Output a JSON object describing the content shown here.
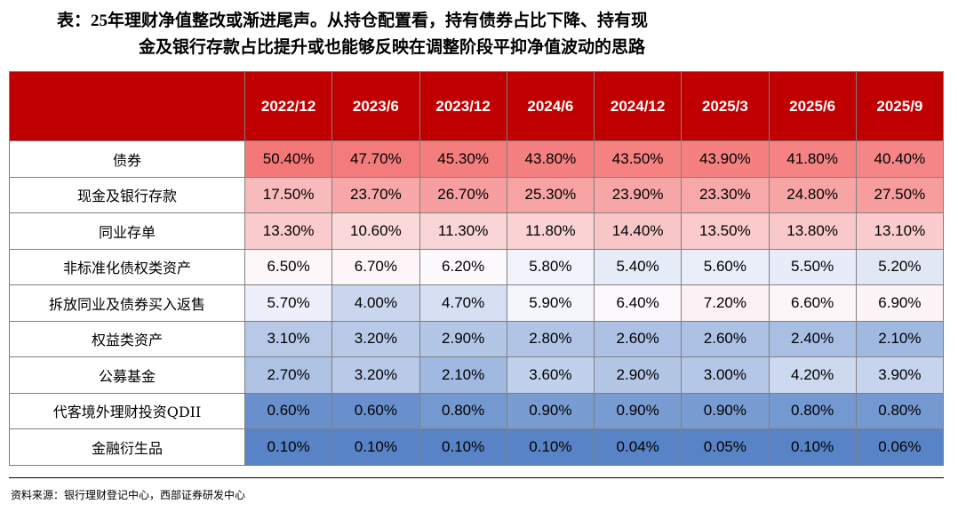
{
  "title": {
    "line1": "表：25年理财净值整改或渐进尾声。从持仓配置看，持有债券占比下降、持有现",
    "line2": "金及银行存款占比提升或也能够反映在调整阶段平抑净值波动的思路"
  },
  "table": {
    "columns": [
      "2022/12",
      "2023/6",
      "2023/12",
      "2024/6",
      "2024/12",
      "2025/3",
      "2025/6",
      "2025/9"
    ],
    "rows": [
      {
        "label": "债券",
        "values": [
          "50.40%",
          "47.70%",
          "45.30%",
          "43.80%",
          "43.50%",
          "43.90%",
          "41.80%",
          "40.40%"
        ]
      },
      {
        "label": "现金及银行存款",
        "values": [
          "17.50%",
          "23.70%",
          "26.70%",
          "25.30%",
          "23.90%",
          "23.30%",
          "24.80%",
          "27.50%"
        ]
      },
      {
        "label": "同业存单",
        "values": [
          "13.30%",
          "10.60%",
          "11.30%",
          "11.80%",
          "14.40%",
          "13.50%",
          "13.80%",
          "13.10%"
        ]
      },
      {
        "label": "非标准化债权类资产",
        "values": [
          "6.50%",
          "6.70%",
          "6.20%",
          "5.80%",
          "5.40%",
          "5.60%",
          "5.50%",
          "5.20%"
        ]
      },
      {
        "label": "拆放同业及债券买入返售",
        "values": [
          "5.70%",
          "4.00%",
          "4.70%",
          "5.90%",
          "6.40%",
          "7.20%",
          "6.60%",
          "6.90%"
        ]
      },
      {
        "label": "权益类资产",
        "values": [
          "3.10%",
          "3.20%",
          "2.90%",
          "2.80%",
          "2.60%",
          "2.60%",
          "2.40%",
          "2.10%"
        ]
      },
      {
        "label": "公募基金",
        "values": [
          "2.70%",
          "3.20%",
          "2.10%",
          "3.60%",
          "2.90%",
          "3.00%",
          "4.20%",
          "3.90%"
        ]
      },
      {
        "label": "代客境外理财投资QDII",
        "values": [
          "0.60%",
          "0.60%",
          "0.80%",
          "0.90%",
          "0.90%",
          "0.90%",
          "0.80%",
          "0.80%"
        ]
      },
      {
        "label": "金融衍生品",
        "values": [
          "0.10%",
          "0.10%",
          "0.10%",
          "0.10%",
          "0.04%",
          "0.05%",
          "0.10%",
          "0.06%"
        ]
      }
    ]
  },
  "source": "资料来源：银行理财登记中心，西部证券研发中心"
}
